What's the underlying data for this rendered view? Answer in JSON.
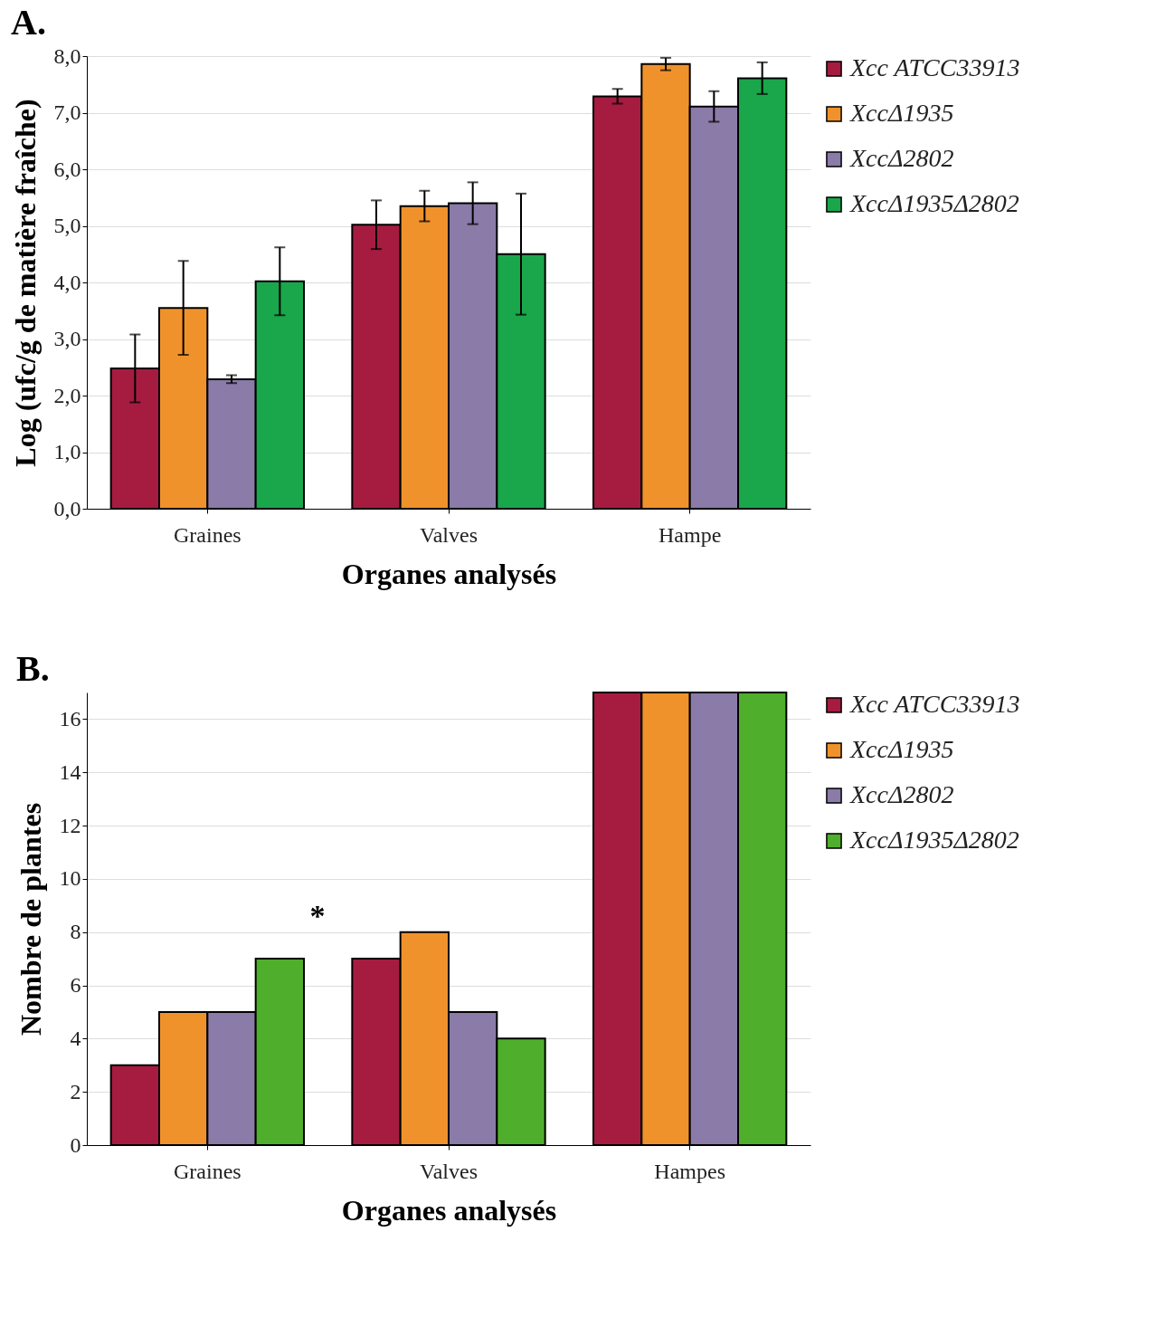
{
  "chart_data": [
    {
      "type": "bar",
      "title": "A.",
      "xlabel": "Organes analysés",
      "ylabel": "Log (ufc/g de matière fraîche)",
      "categories": [
        "Graines",
        "Valves",
        "Hampe"
      ],
      "series": [
        {
          "name": "Xcc ATCC33913",
          "color": "#a51c40",
          "values": [
            2.48,
            5.02,
            7.29
          ],
          "errors": [
            0.6,
            0.43,
            0.13
          ]
        },
        {
          "name": "XccΔ1935",
          "color": "#f0922b",
          "values": [
            3.55,
            5.35,
            7.86
          ],
          "errors": [
            0.83,
            0.27,
            0.11
          ]
        },
        {
          "name": "XccΔ2802",
          "color": "#8a7ba8",
          "values": [
            2.29,
            5.4,
            7.11
          ],
          "errors": [
            0.07,
            0.37,
            0.27
          ]
        },
        {
          "name": "XccΔ1935Δ2802",
          "color": "#1aa64b",
          "values": [
            4.02,
            4.5,
            7.61
          ],
          "errors": [
            0.6,
            1.07,
            0.28
          ]
        }
      ],
      "ylim": [
        0,
        8
      ],
      "yticks": [
        {
          "value": 0,
          "label": "0,0"
        },
        {
          "value": 1,
          "label": "1,0"
        },
        {
          "value": 2,
          "label": "2,0"
        },
        {
          "value": 3,
          "label": "3,0"
        },
        {
          "value": 4,
          "label": "4,0"
        },
        {
          "value": 5,
          "label": "5,0"
        },
        {
          "value": 6,
          "label": "6,0"
        },
        {
          "value": 7,
          "label": "7,0"
        },
        {
          "value": 8,
          "label": "8,0"
        }
      ],
      "grid": "y",
      "legend": "right"
    },
    {
      "type": "bar",
      "title": "B.",
      "xlabel": "Organes analysés",
      "ylabel": "Nombre de plantes",
      "categories": [
        "Graines",
        "Valves",
        "Hampes"
      ],
      "series": [
        {
          "name": "Xcc ATCC33913",
          "color": "#a51c40",
          "values": [
            3,
            7,
            17
          ]
        },
        {
          "name": "XccΔ1935",
          "color": "#f0922b",
          "values": [
            5,
            8,
            17
          ]
        },
        {
          "name": "XccΔ2802",
          "color": "#8a7ba8",
          "values": [
            5,
            5,
            17
          ]
        },
        {
          "name": "XccΔ1935Δ2802",
          "color": "#4fae2b",
          "values": [
            7,
            4,
            17
          ]
        }
      ],
      "ylim": [
        0,
        17
      ],
      "yticks": [
        0,
        2,
        4,
        6,
        8,
        10,
        12,
        14,
        16
      ],
      "annotations": [
        "*"
      ],
      "grid": "y",
      "legend": "right"
    }
  ]
}
